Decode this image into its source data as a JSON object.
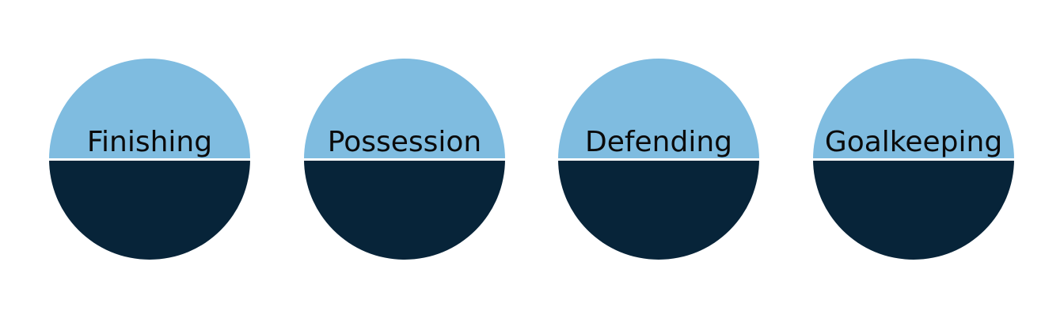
{
  "colors": {
    "top_half": "#7fbce0",
    "bottom_half": "#072439",
    "divider": "#ffffff",
    "label_text": "#0a0a0a"
  },
  "circles": [
    {
      "label": "Finishing"
    },
    {
      "label": "Possession"
    },
    {
      "label": "Defending"
    },
    {
      "label": "Goalkeeping"
    }
  ]
}
